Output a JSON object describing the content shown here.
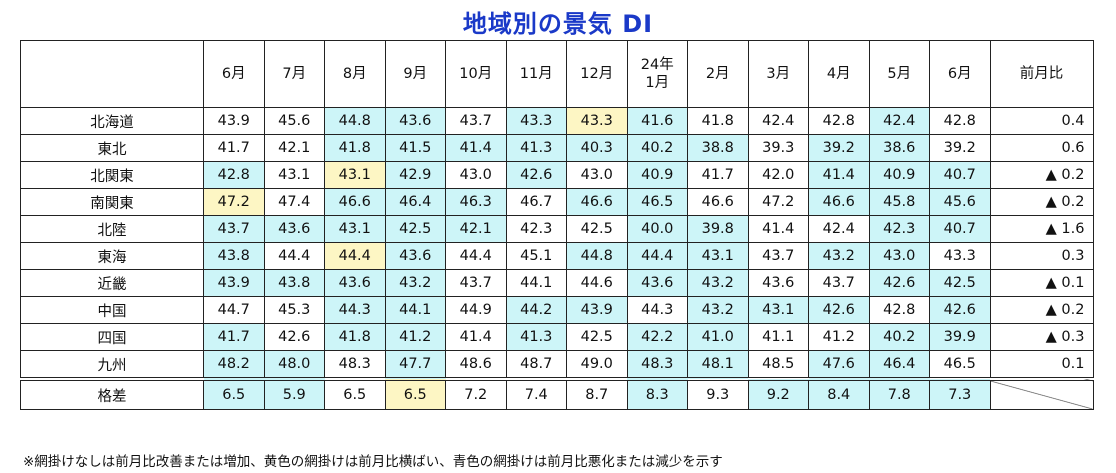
{
  "title": "地域別の景気 DI",
  "header": {
    "corner": "",
    "months": [
      "6月",
      "7月",
      "8月",
      "9月",
      "10月",
      "11月",
      "12月",
      "24年\n1月",
      "2月",
      "3月",
      "4月",
      "5月",
      "6月"
    ],
    "change_label": "前月比"
  },
  "rows": [
    {
      "name": "北海道",
      "values": [
        "43.9",
        "45.6",
        "44.8",
        "43.6",
        "43.7",
        "43.3",
        "43.3",
        "41.6",
        "41.8",
        "42.4",
        "42.8",
        "42.4",
        "42.8"
      ],
      "change": "0.4",
      "shade": [
        "",
        "",
        "b",
        "b",
        "",
        "b",
        "y",
        "b",
        "",
        "",
        "",
        "b",
        ""
      ]
    },
    {
      "name": "東北",
      "values": [
        "41.7",
        "42.1",
        "41.8",
        "41.5",
        "41.4",
        "41.3",
        "40.3",
        "40.2",
        "38.8",
        "39.3",
        "39.2",
        "38.6",
        "39.2"
      ],
      "change": "0.6",
      "shade": [
        "",
        "",
        "b",
        "b",
        "b",
        "b",
        "b",
        "b",
        "b",
        "",
        "b",
        "b",
        ""
      ]
    },
    {
      "name": "北関東",
      "values": [
        "42.8",
        "43.1",
        "43.1",
        "42.9",
        "43.0",
        "42.6",
        "43.0",
        "40.9",
        "41.7",
        "42.0",
        "41.4",
        "40.9",
        "40.7"
      ],
      "change": "▲ 0.2",
      "shade": [
        "b",
        "",
        "y",
        "b",
        "",
        "b",
        "",
        "b",
        "",
        "",
        "b",
        "b",
        "b"
      ]
    },
    {
      "name": "南関東",
      "values": [
        "47.2",
        "47.4",
        "46.6",
        "46.4",
        "46.3",
        "46.7",
        "46.6",
        "46.5",
        "46.6",
        "47.2",
        "46.6",
        "45.8",
        "45.6"
      ],
      "change": "▲ 0.2",
      "shade": [
        "y",
        "",
        "b",
        "b",
        "b",
        "",
        "b",
        "b",
        "",
        "",
        "b",
        "b",
        "b"
      ]
    },
    {
      "name": "北陸",
      "values": [
        "43.7",
        "43.6",
        "43.1",
        "42.5",
        "42.1",
        "42.3",
        "42.5",
        "40.0",
        "39.8",
        "41.4",
        "42.4",
        "42.3",
        "40.7"
      ],
      "change": "▲ 1.6",
      "shade": [
        "b",
        "b",
        "b",
        "b",
        "b",
        "",
        "",
        "b",
        "b",
        "",
        "",
        "b",
        "b"
      ]
    },
    {
      "name": "東海",
      "values": [
        "43.8",
        "44.4",
        "44.4",
        "43.6",
        "44.4",
        "45.1",
        "44.8",
        "44.4",
        "43.1",
        "43.7",
        "43.2",
        "43.0",
        "43.3"
      ],
      "change": "0.3",
      "shade": [
        "b",
        "",
        "y",
        "b",
        "",
        "",
        "b",
        "b",
        "b",
        "",
        "b",
        "b",
        ""
      ]
    },
    {
      "name": "近畿",
      "values": [
        "43.9",
        "43.8",
        "43.6",
        "43.2",
        "43.7",
        "44.1",
        "44.6",
        "43.6",
        "43.2",
        "43.6",
        "43.7",
        "42.6",
        "42.5"
      ],
      "change": "▲ 0.1",
      "shade": [
        "b",
        "b",
        "b",
        "b",
        "",
        "",
        "",
        "b",
        "b",
        "",
        "",
        "b",
        "b"
      ]
    },
    {
      "name": "中国",
      "values": [
        "44.7",
        "45.3",
        "44.3",
        "44.1",
        "44.9",
        "44.2",
        "43.9",
        "44.3",
        "43.2",
        "43.1",
        "42.6",
        "42.8",
        "42.6"
      ],
      "change": "▲ 0.2",
      "shade": [
        "",
        "",
        "b",
        "b",
        "",
        "b",
        "b",
        "",
        "b",
        "b",
        "b",
        "",
        "b"
      ]
    },
    {
      "name": "四国",
      "values": [
        "41.7",
        "42.6",
        "41.8",
        "41.2",
        "41.4",
        "41.3",
        "42.5",
        "42.2",
        "41.0",
        "41.1",
        "41.2",
        "40.2",
        "39.9"
      ],
      "change": "▲ 0.3",
      "shade": [
        "b",
        "",
        "b",
        "b",
        "",
        "b",
        "",
        "b",
        "b",
        "",
        "",
        "b",
        "b"
      ]
    },
    {
      "name": "九州",
      "values": [
        "48.2",
        "48.0",
        "48.3",
        "47.7",
        "48.6",
        "48.7",
        "49.0",
        "48.3",
        "48.1",
        "48.5",
        "47.6",
        "46.4",
        "46.5"
      ],
      "change": "0.1",
      "shade": [
        "b",
        "b",
        "",
        "b",
        "",
        "",
        "",
        "b",
        "b",
        "",
        "b",
        "b",
        ""
      ]
    }
  ],
  "spread_row": {
    "name": "格差",
    "values": [
      "6.5",
      "5.9",
      "6.5",
      "6.5",
      "7.2",
      "7.4",
      "8.7",
      "8.3",
      "9.3",
      "9.2",
      "8.4",
      "7.8",
      "7.3"
    ],
    "change": "",
    "shade": [
      "b",
      "b",
      "",
      "y",
      "",
      "",
      "",
      "b",
      "",
      "b",
      "b",
      "b",
      "b"
    ]
  },
  "note": "※網掛けなしは前月比改善または増加、黄色の網掛けは前月比横ばい、青色の網掛けは前月比悪化または減少を示す",
  "colors": {
    "title": "#1a39c8",
    "blue_shade": "#cdf5f8",
    "yellow_shade": "#fdf6c4"
  }
}
